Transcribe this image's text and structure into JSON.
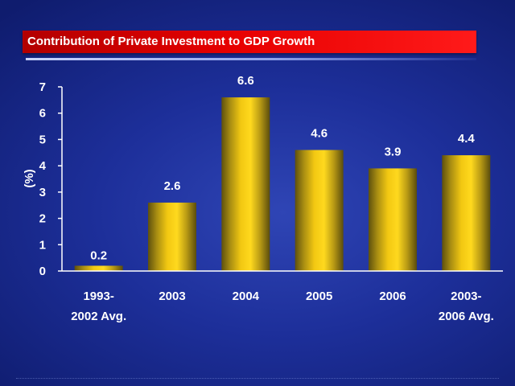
{
  "title": "Contribution of Private Investment to GDP Growth",
  "chart_data": {
    "type": "bar",
    "title": "Contribution of Private Investment to GDP Growth",
    "ylabel": "(%)",
    "xlabel": "",
    "ylim": [
      0,
      7
    ],
    "yticks": [
      "0",
      "1",
      "2",
      "3",
      "4",
      "5",
      "6",
      "7"
    ],
    "categories": [
      [
        "1993-",
        "2002  Avg."
      ],
      [
        "2003"
      ],
      [
        "2004"
      ],
      [
        "2005"
      ],
      [
        "2006"
      ],
      [
        "2003-",
        "2006 Avg."
      ]
    ],
    "values": [
      0.2,
      2.6,
      6.6,
      4.6,
      3.9,
      4.4
    ],
    "value_labels": [
      "0.2",
      "2.6",
      "6.6",
      "4.6",
      "3.9",
      "4.4"
    ],
    "grid": false,
    "legend": "none",
    "colors": {
      "bar_light": "#ffd21a",
      "bar_dark": "#6b5a10",
      "axis": "#ffffff",
      "title_bar": "#e60000"
    }
  }
}
